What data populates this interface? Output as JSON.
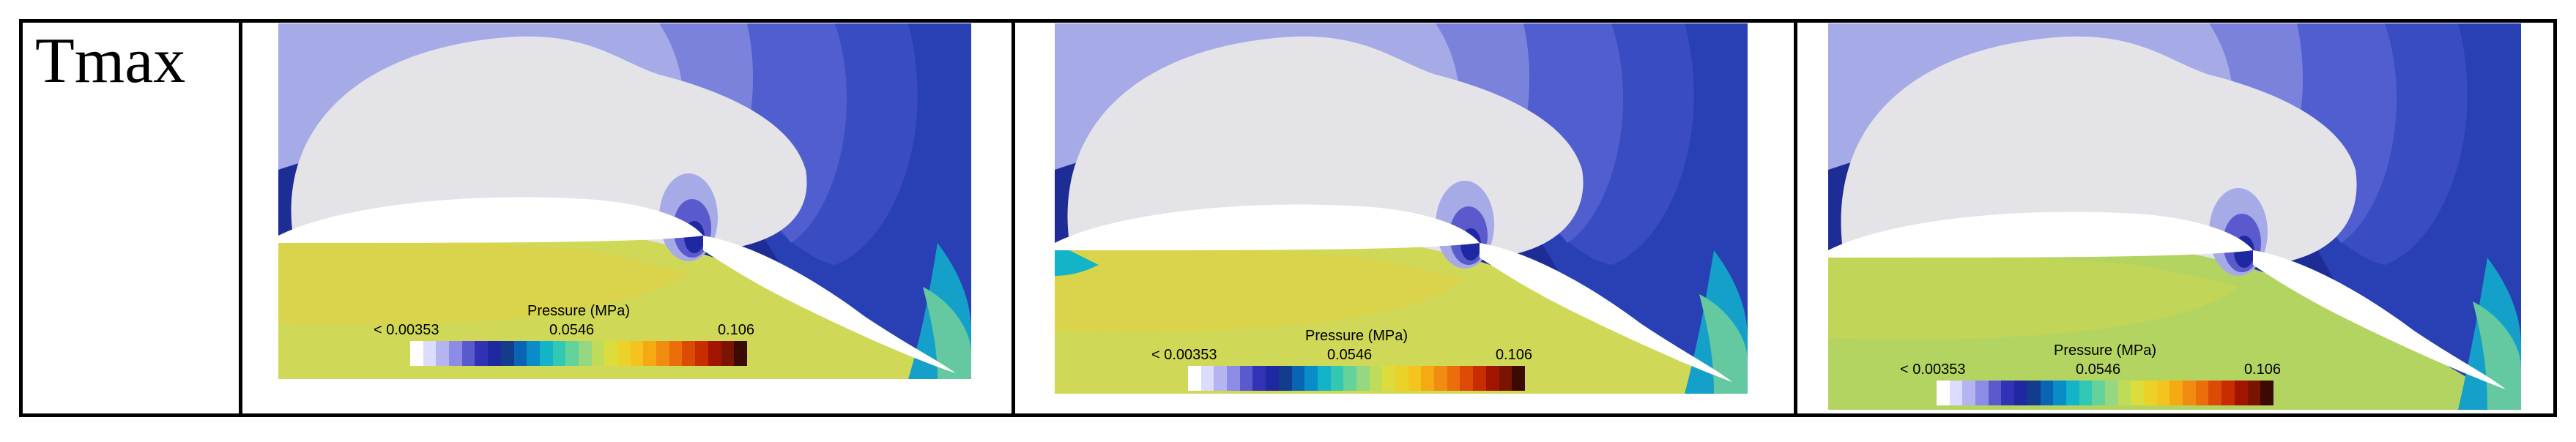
{
  "row": {
    "label": "Tmax"
  },
  "legend": {
    "title": "Pressure (MPa)",
    "min_label": "< 0.00353",
    "mid_label": "0.0546",
    "max_label": "0.106"
  },
  "colormap": [
    "#ffffff",
    "#dcdcff",
    "#b4b4f0",
    "#8c8ce6",
    "#5a5acd",
    "#3232b4",
    "#1e28a0",
    "#143c8c",
    "#0a64b4",
    "#0a8cc8",
    "#14b4c8",
    "#32c8b4",
    "#64d29b",
    "#96d782",
    "#bedc5a",
    "#dcdc3c",
    "#ebd228",
    "#f5c31e",
    "#f5aa14",
    "#f08c0f",
    "#eb6e0a",
    "#dc4b05",
    "#c82d00",
    "#a01400",
    "#781400",
    "#3c0a00"
  ],
  "panels": [
    {
      "name": "panel-1"
    },
    {
      "name": "panel-2"
    },
    {
      "name": "panel-3"
    }
  ]
}
